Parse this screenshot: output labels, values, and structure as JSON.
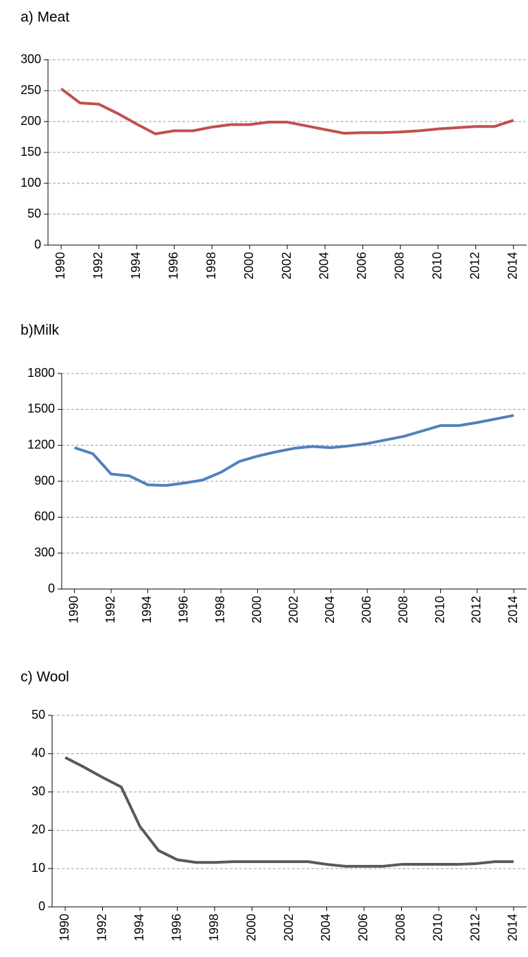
{
  "chart_data": [
    {
      "type": "line",
      "title": "a) Meat",
      "x": [
        1990,
        1991,
        1992,
        1993,
        1994,
        1995,
        1996,
        1997,
        1998,
        1999,
        2000,
        2001,
        2002,
        2003,
        2004,
        2005,
        2006,
        2007,
        2008,
        2009,
        2010,
        2011,
        2012,
        2013,
        2014
      ],
      "series": [
        {
          "color": "#c0504d",
          "values": [
            253,
            230,
            228,
            213,
            196,
            180,
            185,
            185,
            191,
            195,
            195,
            199,
            199,
            193,
            187,
            181,
            182,
            182,
            183,
            185,
            188,
            190,
            192,
            192,
            202
          ]
        }
      ],
      "xlim": [
        1989.3,
        2014.7
      ],
      "xticks": [
        1990,
        1992,
        1994,
        1996,
        1998,
        2000,
        2002,
        2004,
        2006,
        2008,
        2010,
        2012,
        2014
      ],
      "ylim": [
        0,
        300
      ],
      "yticks": [
        0,
        50,
        100,
        150,
        200,
        250,
        300
      ],
      "grid": true
    },
    {
      "type": "line",
      "title": "b)Milk",
      "x": [
        1990,
        1991,
        1992,
        1993,
        1994,
        1995,
        1996,
        1997,
        1998,
        1999,
        2000,
        2001,
        2002,
        2003,
        2004,
        2005,
        2006,
        2007,
        2008,
        2009,
        2010,
        2011,
        2012,
        2013,
        2014
      ],
      "series": [
        {
          "color": "#4f81bd",
          "values": [
            1180,
            1130,
            960,
            945,
            870,
            865,
            885,
            910,
            975,
            1065,
            1110,
            1145,
            1175,
            1190,
            1180,
            1195,
            1215,
            1245,
            1275,
            1320,
            1365,
            1365,
            1390,
            1420,
            1450
          ]
        }
      ],
      "xlim": [
        1989.3,
        2014.7
      ],
      "xticks": [
        1990,
        1992,
        1994,
        1996,
        1998,
        2000,
        2002,
        2004,
        2006,
        2008,
        2010,
        2012,
        2014
      ],
      "ylim": [
        0,
        1800
      ],
      "yticks": [
        0,
        300,
        600,
        900,
        1200,
        1500,
        1800
      ],
      "grid": true
    },
    {
      "type": "line",
      "title": "c) Wool",
      "x": [
        1990,
        1991,
        1992,
        1993,
        1994,
        1995,
        1996,
        1997,
        1998,
        1999,
        2000,
        2001,
        2002,
        2003,
        2004,
        2005,
        2006,
        2007,
        2008,
        2009,
        2010,
        2011,
        2012,
        2013,
        2014
      ],
      "series": [
        {
          "color": "#595959",
          "values": [
            39,
            36.5,
            33.8,
            31.3,
            21,
            14.7,
            12.3,
            11.6,
            11.6,
            11.8,
            11.8,
            11.8,
            11.8,
            11.8,
            11.1,
            10.6,
            10.6,
            10.6,
            11.1,
            11.1,
            11.1,
            11.1,
            11.3,
            11.8,
            11.8
          ]
        }
      ],
      "xlim": [
        1989.3,
        2014.7
      ],
      "xticks": [
        1990,
        1992,
        1994,
        1996,
        1998,
        2000,
        2002,
        2004,
        2006,
        2008,
        2010,
        2012,
        2014
      ],
      "ylim": [
        0,
        50
      ],
      "yticks": [
        0,
        10,
        20,
        30,
        40,
        50
      ],
      "grid": true
    }
  ]
}
